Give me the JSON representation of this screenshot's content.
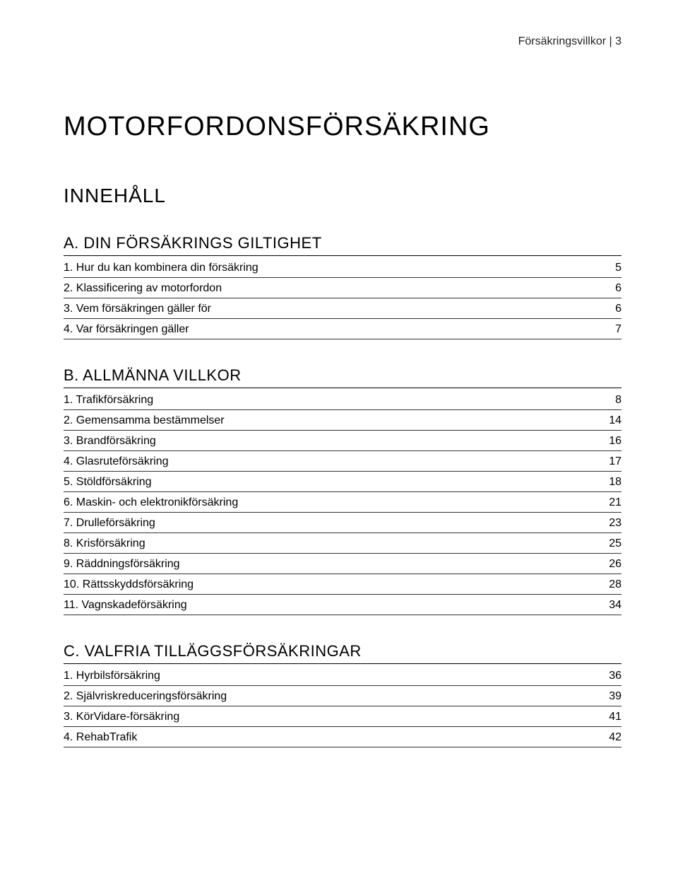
{
  "header_right": "Försäkringsvillkor | 3",
  "main_title": "MOTORFORDONSFÖRSÄKRING",
  "subtitle": "INNEHÅLL",
  "sections": [
    {
      "heading": "A. DIN FÖRSÄKRINGS GILTIGHET",
      "items": [
        {
          "label": "1. Hur du kan kombinera din försäkring",
          "page": "5"
        },
        {
          "label": "2. Klassificering av motorfordon",
          "page": "6"
        },
        {
          "label": "3. Vem försäkringen gäller för",
          "page": "6"
        },
        {
          "label": "4. Var försäkringen gäller",
          "page": "7"
        }
      ]
    },
    {
      "heading": "B. ALLMÄNNA VILLKOR",
      "items": [
        {
          "label": "1. Trafikförsäkring",
          "page": "8"
        },
        {
          "label": "2. Gemensamma bestämmelser",
          "page": "14"
        },
        {
          "label": "3. Brandförsäkring",
          "page": "16"
        },
        {
          "label": "4. Glasruteförsäkring",
          "page": "17"
        },
        {
          "label": "5. Stöldförsäkring",
          "page": "18"
        },
        {
          "label": "6. Maskin- och elektronikförsäkring",
          "page": "21"
        },
        {
          "label": "7. Drulleförsäkring",
          "page": "23"
        },
        {
          "label": "8. Krisförsäkring",
          "page": "25"
        },
        {
          "label": "9. Räddningsförsäkring",
          "page": "26"
        },
        {
          "label": "10. Rättsskyddsförsäkring",
          "page": "28"
        },
        {
          "label": "11. Vagnskadeförsäkring",
          "page": "34"
        }
      ]
    },
    {
      "heading": "C. VALFRIA TILLÄGGSFÖRSÄKRINGAR",
      "items": [
        {
          "label": "1. Hyrbilsförsäkring",
          "page": "36"
        },
        {
          "label": "2. Självriskreduceringsförsäkring",
          "page": "39"
        },
        {
          "label": "3. KörVidare-försäkring",
          "page": "41"
        },
        {
          "label": "4. RehabTrafik",
          "page": "42"
        }
      ]
    }
  ]
}
